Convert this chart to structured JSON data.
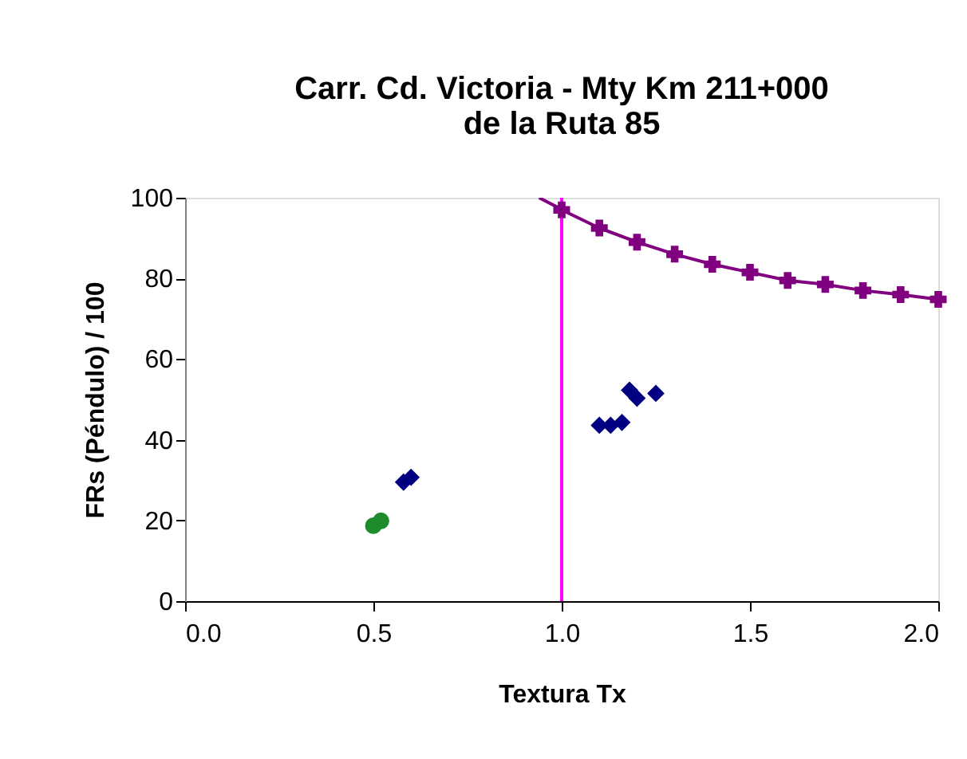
{
  "chart_data": {
    "type": "scatter",
    "title": [
      "Carr. Cd. Victoria - Mty Km 211+000",
      "de la Ruta 85"
    ],
    "xlabel": "Textura Tx",
    "ylabel": "FRs (Péndulo) / 100",
    "xlim": [
      0,
      2
    ],
    "ylim": [
      0,
      100
    ],
    "xticks": [
      {
        "value": 0,
        "label": "0.0"
      },
      {
        "value": 0.5,
        "label": "0.5"
      },
      {
        "value": 1,
        "label": "1.0"
      },
      {
        "value": 1.5,
        "label": "1.5"
      },
      {
        "value": 2,
        "label": "2.0"
      }
    ],
    "yticks": [
      0,
      20,
      40,
      60,
      80,
      100
    ],
    "grid": false,
    "ref_lines": [
      {
        "axis": "x",
        "value": 1,
        "color": "#ff00ff"
      }
    ],
    "series": [
      {
        "marker": "circle",
        "color": "#1e8c2c",
        "x": [
          0.5,
          0.52
        ],
        "values": [
          18.7,
          19.9
        ]
      },
      {
        "marker": "diamond",
        "color": "#000080",
        "x": [
          0.58,
          0.6,
          1.1,
          1.13,
          1.16,
          1.18,
          1.2,
          1.25
        ],
        "values": [
          29.5,
          30.7,
          43.6,
          43.6,
          44.3,
          52.3,
          50.3,
          51.5
        ]
      },
      {
        "type": "line",
        "color": "#800080",
        "x": [
          0.94,
          0.99
        ],
        "values": [
          100,
          97.6
        ]
      },
      {
        "type": "line",
        "marker": "cross",
        "color": "#800080",
        "x": [
          1.0,
          1.1,
          1.2,
          1.3,
          1.4,
          1.5,
          1.6,
          1.7,
          1.8,
          1.9,
          2.0
        ],
        "values": [
          97,
          92.5,
          89,
          86,
          83.5,
          81.5,
          79.5,
          78.5,
          77,
          76,
          74.8
        ]
      }
    ]
  }
}
